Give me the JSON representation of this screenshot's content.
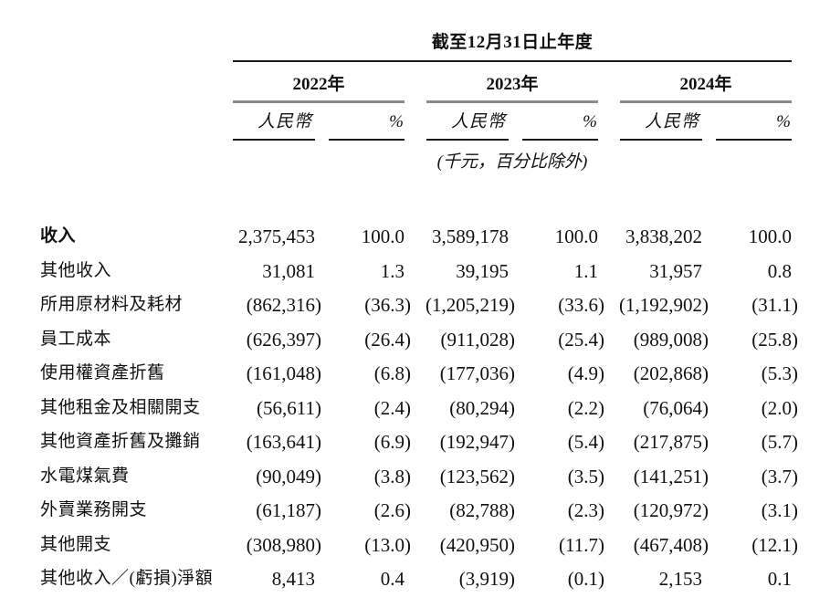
{
  "table": {
    "title": "截至12月31日止年度",
    "unit_note": "(千元，百分比除外)",
    "year_groups": [
      {
        "year": "2022年",
        "currency_label": "人民幣",
        "percent_label": "%"
      },
      {
        "year": "2023年",
        "currency_label": "人民幣",
        "percent_label": "%"
      },
      {
        "year": "2024年",
        "currency_label": "人民幣",
        "percent_label": "%"
      }
    ],
    "rows": [
      {
        "label": "收入",
        "emphasis": "bold",
        "values": [
          "2,375,453",
          "100.0",
          "3,589,178",
          "100.0",
          "3,838,202",
          "100.0"
        ]
      },
      {
        "label": "其他收入",
        "values": [
          "31,081",
          "1.3",
          "39,195",
          "1.1",
          "31,957",
          "0.8"
        ]
      },
      {
        "label": "所用原材料及耗材",
        "values": [
          "(862,316)",
          "(36.3)",
          "(1,205,219)",
          "(33.6)",
          "(1,192,902)",
          "(31.1)"
        ]
      },
      {
        "label": "員工成本",
        "values": [
          "(626,397)",
          "(26.4)",
          "(911,028)",
          "(25.4)",
          "(989,008)",
          "(25.8)"
        ]
      },
      {
        "label": "使用權資產折舊",
        "values": [
          "(161,048)",
          "(6.8)",
          "(177,036)",
          "(4.9)",
          "(202,868)",
          "(5.3)"
        ]
      },
      {
        "label": "其他租金及相關開支",
        "values": [
          "(56,611)",
          "(2.4)",
          "(80,294)",
          "(2.2)",
          "(76,064)",
          "(2.0)"
        ]
      },
      {
        "label": "其他資產折舊及攤銷",
        "values": [
          "(163,641)",
          "(6.9)",
          "(192,947)",
          "(5.4)",
          "(217,875)",
          "(5.7)"
        ]
      },
      {
        "label": "水電煤氣費",
        "values": [
          "(90,049)",
          "(3.8)",
          "(123,562)",
          "(3.5)",
          "(141,251)",
          "(3.7)"
        ]
      },
      {
        "label": "外賣業務開支",
        "values": [
          "(61,187)",
          "(2.6)",
          "(82,788)",
          "(2.3)",
          "(120,972)",
          "(3.1)"
        ]
      },
      {
        "label": "其他開支",
        "values": [
          "(308,980)",
          "(13.0)",
          "(420,950)",
          "(11.7)",
          "(467,408)",
          "(12.1)"
        ]
      },
      {
        "label": "其他收入／(虧損)淨額",
        "values": [
          "8,413",
          "0.4",
          "(3,919)",
          "(0.1)",
          "2,153",
          "0.1"
        ]
      }
    ]
  }
}
